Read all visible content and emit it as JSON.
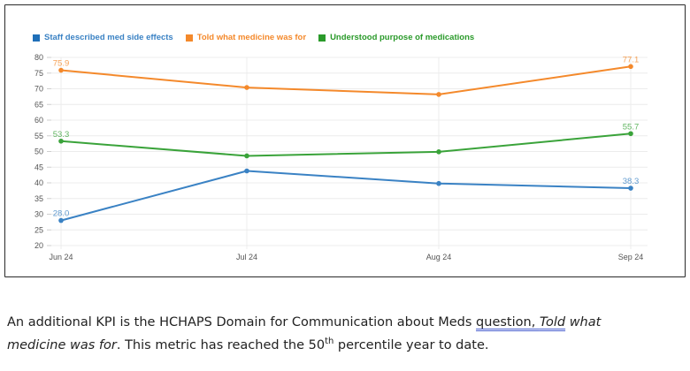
{
  "chart_data": {
    "type": "line",
    "title": "",
    "xlabel": "",
    "ylabel": "",
    "categories": [
      "Jun 24",
      "Jul 24",
      "Aug 24",
      "Sep 24"
    ],
    "ylim": [
      20,
      80
    ],
    "yticks": [
      20,
      25,
      30,
      35,
      40,
      45,
      50,
      55,
      60,
      65,
      70,
      75,
      80
    ],
    "grid": true,
    "legend_position": "top-left",
    "series": [
      {
        "name": "Staff described med side effects",
        "color": "#3a82c4",
        "values": [
          28.0,
          43.8,
          39.8,
          38.3
        ],
        "labels": [
          "28.0",
          null,
          null,
          "38.3"
        ]
      },
      {
        "name": "Told what medicine was for",
        "color": "#f4892b",
        "values": [
          75.9,
          70.4,
          68.2,
          77.1
        ],
        "labels": [
          "75.9",
          null,
          null,
          "77.1"
        ]
      },
      {
        "name": "Understood purpose of medications",
        "color": "#3aa33a",
        "values": [
          53.3,
          48.6,
          49.9,
          55.7
        ],
        "labels": [
          "53.3",
          null,
          null,
          "55.7"
        ]
      }
    ]
  },
  "paragraph": {
    "line1_a": "An additional KPI is the HCHAPS Domain for Communication about Meds ",
    "line1_squiggle": "question,  ",
    "line1_told": "Told",
    "line1_what": " what",
    "line2_italic": "medicine was for",
    "line2_a": ".  This metric has reached the 50",
    "line2_sup": "th",
    "line2_b": " percentile year to date."
  }
}
